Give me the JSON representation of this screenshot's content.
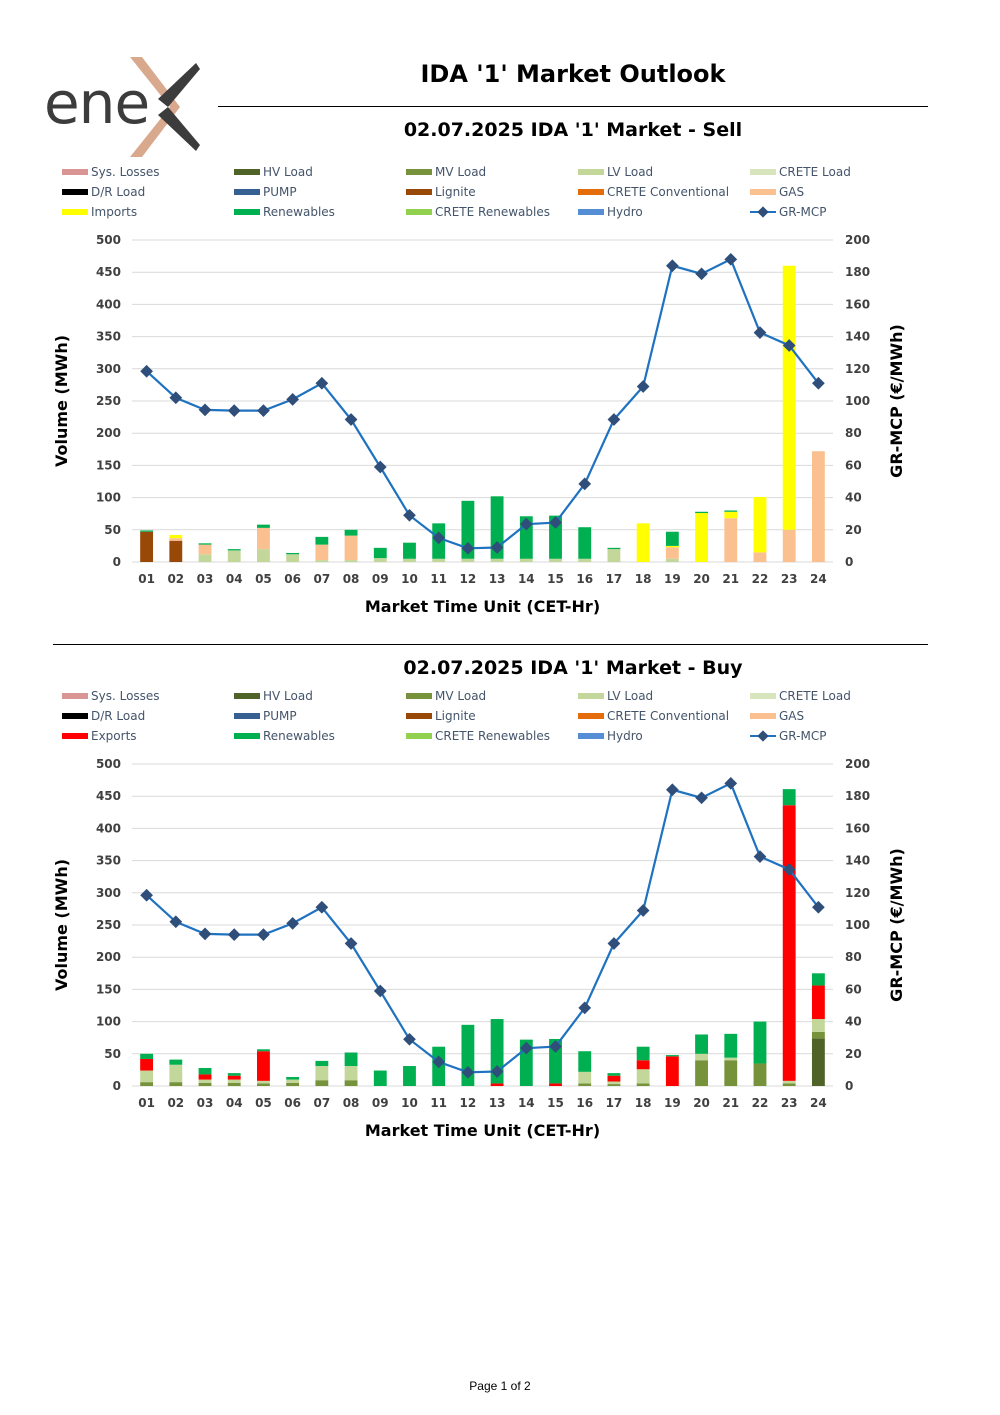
{
  "logo": {
    "text": "ene"
  },
  "page_title": "IDA '1' Market Outlook",
  "footer": "Page 1 of 2",
  "colors": {
    "Sys. Losses": "#d99594",
    "HV Load": "#4f6228",
    "MV Load": "#76933c",
    "LV Load": "#c4d79b",
    "CRETE Load": "#d8e4bc",
    "D/R Load": "#000000",
    "PUMP": "#376092",
    "Lignite": "#984807",
    "CRETE Conventional": "#e46c0a",
    "GAS": "#fac090",
    "Imports": "#ffff00",
    "Exports": "#ff0000",
    "Renewables": "#00b050",
    "CRETE Renewables": "#92d050",
    "Hydro": "#558ed5",
    "GR-MCP": "#1f72c0",
    "GR-MCP-marker": "#2f4f7a"
  },
  "chart_data": [
    {
      "type": "bar",
      "title": "02.07.2025  IDA '1' Market - Sell",
      "xlabel": "Market Time Unit (CET-Hr)",
      "ylabel": "Volume (MWh)",
      "y2label": "GR-MCP (€/MWh)",
      "ylim": [
        0,
        500
      ],
      "y2lim": [
        0,
        200
      ],
      "yticks": [
        0,
        50,
        100,
        150,
        200,
        250,
        300,
        350,
        400,
        450,
        500
      ],
      "y2ticks": [
        0,
        20,
        40,
        60,
        80,
        100,
        120,
        140,
        160,
        180,
        200
      ],
      "grid": true,
      "legend_position": "top",
      "legend": [
        "Sys. Losses",
        "HV Load",
        "MV Load",
        "LV Load",
        "CRETE Load",
        "D/R Load",
        "PUMP",
        "Lignite",
        "CRETE Conventional",
        "GAS",
        "Imports",
        "Renewables",
        "CRETE Renewables",
        "Hydro",
        "GR-MCP"
      ],
      "categories": [
        "01",
        "02",
        "03",
        "04",
        "05",
        "06",
        "07",
        "08",
        "09",
        "10",
        "11",
        "12",
        "13",
        "14",
        "15",
        "16",
        "17",
        "18",
        "19",
        "20",
        "21",
        "22",
        "23",
        "24"
      ],
      "series": [
        {
          "name": "Lignite",
          "values": [
            47,
            33,
            0,
            0,
            0,
            0,
            0,
            0,
            0,
            0,
            0,
            0,
            0,
            0,
            0,
            0,
            0,
            0,
            0,
            0,
            0,
            0,
            0,
            0
          ]
        },
        {
          "name": "LV Load",
          "values": [
            0,
            0,
            12,
            18,
            20,
            12,
            3,
            3,
            6,
            5,
            5,
            5,
            5,
            5,
            5,
            5,
            20,
            0,
            5,
            0,
            0,
            0,
            0,
            0
          ]
        },
        {
          "name": "GAS",
          "values": [
            0,
            4,
            15,
            0,
            33,
            0,
            24,
            38,
            0,
            0,
            0,
            0,
            0,
            0,
            0,
            0,
            0,
            0,
            18,
            0,
            68,
            15,
            50,
            172
          ]
        },
        {
          "name": "Imports",
          "values": [
            0,
            5,
            0,
            0,
            0,
            0,
            0,
            0,
            0,
            0,
            0,
            0,
            0,
            0,
            0,
            0,
            0,
            60,
            2,
            76,
            10,
            86,
            410,
            0
          ]
        },
        {
          "name": "Renewables",
          "values": [
            2,
            0,
            2,
            2,
            5,
            2,
            12,
            9,
            16,
            25,
            55,
            90,
            97,
            66,
            67,
            49,
            2,
            0,
            22,
            2,
            2,
            0,
            0,
            0
          ]
        }
      ],
      "line": {
        "name": "GR-MCP",
        "values": [
          118.5,
          102,
          94.5,
          94,
          94,
          101,
          111,
          88.5,
          59,
          29,
          15,
          8.5,
          9,
          23.5,
          24.5,
          48.5,
          88.5,
          109,
          184,
          179,
          188,
          142.5,
          134.5,
          111
        ]
      }
    },
    {
      "type": "bar",
      "title": "02.07.2025  IDA '1' Market - Buy",
      "xlabel": "Market Time Unit (CET-Hr)",
      "ylabel": "Volume (MWh)",
      "y2label": "GR-MCP (€/MWh)",
      "ylim": [
        0,
        500
      ],
      "y2lim": [
        0,
        200
      ],
      "yticks": [
        0,
        50,
        100,
        150,
        200,
        250,
        300,
        350,
        400,
        450,
        500
      ],
      "y2ticks": [
        0,
        20,
        40,
        60,
        80,
        100,
        120,
        140,
        160,
        180,
        200
      ],
      "grid": true,
      "legend_position": "top",
      "legend": [
        "Sys. Losses",
        "HV Load",
        "MV Load",
        "LV Load",
        "CRETE Load",
        "D/R Load",
        "PUMP",
        "Lignite",
        "CRETE Conventional",
        "GAS",
        "Exports",
        "Renewables",
        "CRETE Renewables",
        "Hydro",
        "GR-MCP"
      ],
      "categories": [
        "01",
        "02",
        "03",
        "04",
        "05",
        "06",
        "07",
        "08",
        "09",
        "10",
        "11",
        "12",
        "13",
        "14",
        "15",
        "16",
        "17",
        "18",
        "19",
        "20",
        "21",
        "22",
        "23",
        "24"
      ],
      "series": [
        {
          "name": "HV Load",
          "values": [
            0,
            0,
            0,
            0,
            0,
            0,
            0,
            0,
            0,
            0,
            0,
            0,
            0,
            0,
            0,
            0,
            0,
            0,
            0,
            0,
            0,
            0,
            0,
            74
          ]
        },
        {
          "name": "MV Load",
          "values": [
            6,
            6,
            5,
            5,
            4,
            5,
            9,
            9,
            0,
            0,
            0,
            0,
            0,
            0,
            0,
            4,
            3,
            4,
            0,
            40,
            40,
            35,
            4,
            10
          ]
        },
        {
          "name": "LV Load",
          "values": [
            18,
            27,
            5,
            5,
            4,
            5,
            22,
            22,
            0,
            0,
            0,
            0,
            0,
            0,
            0,
            18,
            4,
            22,
            0,
            10,
            4,
            0,
            4,
            20
          ]
        },
        {
          "name": "Exports",
          "values": [
            18,
            0,
            8,
            6,
            46,
            0,
            0,
            0,
            0,
            0,
            0,
            0,
            4,
            0,
            4,
            0,
            9,
            14,
            46,
            0,
            0,
            0,
            428,
            52
          ]
        },
        {
          "name": "Renewables",
          "values": [
            8,
            8,
            10,
            4,
            3,
            4,
            8,
            21,
            24,
            31,
            61,
            95,
            100,
            72,
            69,
            32,
            4,
            21,
            2,
            30,
            37,
            65,
            25,
            19
          ]
        }
      ],
      "line": {
        "name": "GR-MCP",
        "values": [
          118.5,
          102,
          94.5,
          94,
          94,
          101,
          111,
          88.5,
          59,
          29,
          15,
          8.5,
          9,
          23.5,
          24.5,
          48.5,
          88.5,
          109,
          184,
          179,
          188,
          142.5,
          134.5,
          111
        ]
      }
    }
  ]
}
